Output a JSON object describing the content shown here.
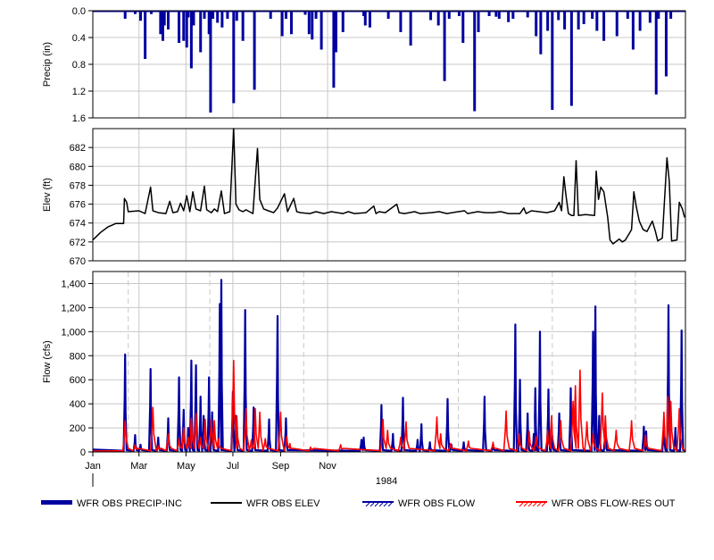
{
  "chart_data": [
    {
      "type": "bar",
      "ylabel": "Precip (in)",
      "yticks": [
        "0.0",
        "0.4",
        "0.8",
        "1.2",
        "1.6"
      ],
      "ylim": [
        0,
        1.6
      ],
      "y_inverted": true,
      "color": "#0000a0",
      "series_name": "WFR OBS PRECIP-INC",
      "values_by_day": [
        [
          42,
          0.12
        ],
        [
          55,
          0.05
        ],
        [
          62,
          0.15
        ],
        [
          68,
          0.72
        ],
        [
          76,
          0.05
        ],
        [
          88,
          0.35
        ],
        [
          91,
          0.45
        ],
        [
          93,
          0.22
        ],
        [
          98,
          0.28
        ],
        [
          112,
          0.48
        ],
        [
          118,
          0.45
        ],
        [
          122,
          0.55
        ],
        [
          124,
          0.1
        ],
        [
          128,
          0.86
        ],
        [
          131,
          0.22
        ],
        [
          140,
          0.62
        ],
        [
          145,
          0.12
        ],
        [
          151,
          0.35
        ],
        [
          153,
          1.52
        ],
        [
          156,
          0.12
        ],
        [
          162,
          0.18
        ],
        [
          168,
          0.25
        ],
        [
          175,
          0.12
        ],
        [
          183,
          1.38
        ],
        [
          187,
          0.15
        ],
        [
          195,
          0.45
        ],
        [
          210,
          1.18
        ],
        [
          231,
          0.12
        ],
        [
          246,
          0.38
        ],
        [
          251,
          0.12
        ],
        [
          258,
          0.35
        ],
        [
          276,
          0.06
        ],
        [
          281,
          0.35
        ],
        [
          285,
          0.43
        ],
        [
          290,
          0.12
        ],
        [
          297,
          0.58
        ],
        [
          313,
          1.15
        ],
        [
          316,
          0.62
        ],
        [
          325,
          0.32
        ],
        [
          352,
          0.08
        ],
        [
          354,
          0.22
        ],
        [
          360,
          0.25
        ],
        [
          384,
          0.12
        ],
        [
          400,
          0.32
        ],
        [
          413,
          0.52
        ],
        [
          439,
          0.14
        ],
        [
          449,
          0.22
        ],
        [
          457,
          1.05
        ],
        [
          463,
          0.12
        ],
        [
          476,
          0.08
        ],
        [
          481,
          0.48
        ],
        [
          496,
          1.5
        ],
        [
          501,
          0.32
        ],
        [
          515,
          0.08
        ],
        [
          524,
          0.09
        ],
        [
          528,
          0.12
        ],
        [
          540,
          0.17
        ],
        [
          546,
          0.12
        ],
        [
          565,
          0.1
        ],
        [
          576,
          0.38
        ],
        [
          582,
          0.65
        ],
        [
          591,
          0.3
        ],
        [
          597,
          1.48
        ],
        [
          605,
          0.14
        ],
        [
          613,
          0.28
        ],
        [
          622,
          1.42
        ],
        [
          631,
          0.28
        ],
        [
          638,
          0.2
        ],
        [
          649,
          0.12
        ],
        [
          655,
          0.3
        ],
        [
          664,
          0.45
        ],
        [
          681,
          0.38
        ],
        [
          695,
          0.12
        ],
        [
          702,
          0.58
        ],
        [
          711,
          0.3
        ],
        [
          724,
          0.18
        ],
        [
          732,
          1.25
        ],
        [
          735,
          0.12
        ],
        [
          745,
          0.98
        ],
        [
          751,
          0.12
        ]
      ]
    },
    {
      "type": "line",
      "ylabel": "Elev (ft)",
      "yticks": [
        "670",
        "672",
        "674",
        "676",
        "678",
        "680",
        "682"
      ],
      "ylim": [
        670,
        684
      ],
      "color": "#000000",
      "series_name": "WFR OBS ELEV",
      "points_by_day": [
        [
          0,
          672.2
        ],
        [
          10,
          673.0
        ],
        [
          20,
          673.6
        ],
        [
          30,
          673.95
        ],
        [
          40,
          673.95
        ],
        [
          41,
          676.6
        ],
        [
          44,
          676.2
        ],
        [
          46,
          675.2
        ],
        [
          60,
          675.3
        ],
        [
          68,
          675.0
        ],
        [
          75,
          677.8
        ],
        [
          78,
          675.3
        ],
        [
          85,
          675.1
        ],
        [
          95,
          675.0
        ],
        [
          100,
          676.3
        ],
        [
          104,
          675.1
        ],
        [
          110,
          675.2
        ],
        [
          114,
          676.1
        ],
        [
          118,
          675.3
        ],
        [
          122,
          676.9
        ],
        [
          126,
          675.2
        ],
        [
          130,
          677.3
        ],
        [
          134,
          675.5
        ],
        [
          140,
          675.3
        ],
        [
          145,
          677.9
        ],
        [
          148,
          675.4
        ],
        [
          154,
          675.1
        ],
        [
          158,
          675.5
        ],
        [
          162,
          675.2
        ],
        [
          167,
          677.4
        ],
        [
          171,
          675.0
        ],
        [
          178,
          675.2
        ],
        [
          183,
          684.0
        ],
        [
          186,
          676.0
        ],
        [
          190,
          675.4
        ],
        [
          195,
          675.2
        ],
        [
          199,
          675.4
        ],
        [
          208,
          675.0
        ],
        [
          214,
          681.9
        ],
        [
          217,
          676.5
        ],
        [
          222,
          675.5
        ],
        [
          228,
          675.3
        ],
        [
          235,
          675.1
        ],
        [
          240,
          675.6
        ],
        [
          249,
          677.1
        ],
        [
          253,
          675.2
        ],
        [
          261,
          676.6
        ],
        [
          265,
          675.2
        ],
        [
          270,
          675.1
        ],
        [
          282,
          675.0
        ],
        [
          290,
          675.2
        ],
        [
          300,
          675.0
        ],
        [
          310,
          675.2
        ],
        [
          318,
          675.1
        ],
        [
          325,
          675.0
        ],
        [
          332,
          675.2
        ],
        [
          340,
          675.0
        ],
        [
          355,
          675.1
        ],
        [
          365,
          675.8
        ],
        [
          368,
          675.0
        ],
        [
          372,
          675.2
        ],
        [
          380,
          675.1
        ],
        [
          395,
          676.0
        ],
        [
          398,
          675.1
        ],
        [
          405,
          675.0
        ],
        [
          418,
          675.2
        ],
        [
          425,
          675.0
        ],
        [
          440,
          675.1
        ],
        [
          450,
          675.2
        ],
        [
          460,
          675.0
        ],
        [
          475,
          675.2
        ],
        [
          483,
          675.3
        ],
        [
          487,
          675.0
        ],
        [
          500,
          675.2
        ],
        [
          510,
          675.1
        ],
        [
          520,
          675.1
        ],
        [
          530,
          675.2
        ],
        [
          540,
          675.0
        ],
        [
          555,
          675.0
        ],
        [
          560,
          675.6
        ],
        [
          563,
          675.0
        ],
        [
          570,
          675.3
        ],
        [
          590,
          675.1
        ],
        [
          600,
          675.3
        ],
        [
          606,
          676.2
        ],
        [
          609,
          675.3
        ],
        [
          612,
          678.9
        ],
        [
          615,
          676.8
        ],
        [
          618,
          675.0
        ],
        [
          622,
          674.8
        ],
        [
          625,
          674.8
        ],
        [
          628,
          680.6
        ],
        [
          631,
          674.8
        ],
        [
          640,
          674.9
        ],
        [
          652,
          674.8
        ],
        [
          654,
          679.5
        ],
        [
          657,
          676.5
        ],
        [
          660,
          677.8
        ],
        [
          664,
          677.3
        ],
        [
          669,
          674.6
        ],
        [
          672,
          672.2
        ],
        [
          676,
          671.8
        ],
        [
          684,
          672.3
        ],
        [
          688,
          672.0
        ],
        [
          692,
          672.2
        ],
        [
          700,
          673.3
        ],
        [
          703,
          677.3
        ],
        [
          706,
          675.8
        ],
        [
          710,
          674.2
        ],
        [
          715,
          673.3
        ],
        [
          720,
          673.1
        ],
        [
          727,
          674.2
        ],
        [
          731,
          673.1
        ],
        [
          734,
          672.1
        ],
        [
          740,
          672.4
        ],
        [
          746,
          680.9
        ],
        [
          749,
          678.4
        ],
        [
          752,
          672.1
        ],
        [
          759,
          672.2
        ],
        [
          762,
          676.2
        ],
        [
          766,
          675.5
        ],
        [
          769,
          674.6
        ]
      ]
    },
    {
      "type": "line",
      "ylabel": "Flow (cfs)",
      "yticks": [
        "0",
        "200",
        "400",
        "600",
        "800",
        "1,000",
        "1,200",
        "1,400"
      ],
      "ylim": [
        0,
        1500
      ],
      "xlabel": "1984",
      "xticks": [
        "Jan",
        "Mar",
        "May",
        "Jul",
        "Sep",
        "Nov"
      ],
      "series": [
        {
          "name": "WFR OBS FLOW",
          "color": "#0000a0",
          "peaks_by_day": [
            [
              42,
              810
            ],
            [
              55,
              140
            ],
            [
              62,
              60
            ],
            [
              75,
              690
            ],
            [
              85,
              120
            ],
            [
              98,
              280
            ],
            [
              112,
              620
            ],
            [
              118,
              350
            ],
            [
              124,
              200
            ],
            [
              128,
              760
            ],
            [
              134,
              720
            ],
            [
              140,
              460
            ],
            [
              144,
              300
            ],
            [
              151,
              620
            ],
            [
              155,
              330
            ],
            [
              165,
              1230
            ],
            [
              167,
              1430
            ],
            [
              182,
              500
            ],
            [
              186,
              300
            ],
            [
              198,
              1180
            ],
            [
              209,
              370
            ],
            [
              229,
              270
            ],
            [
              240,
              1130
            ],
            [
              251,
              280
            ],
            [
              349,
              100
            ],
            [
              352,
              120
            ],
            [
              375,
              390
            ],
            [
              390,
              150
            ],
            [
              403,
              450
            ],
            [
              422,
              100
            ],
            [
              427,
              230
            ],
            [
              438,
              80
            ],
            [
              461,
              440
            ],
            [
              466,
              60
            ],
            [
              482,
              80
            ],
            [
              509,
              460
            ],
            [
              520,
              60
            ],
            [
              549,
              1060
            ],
            [
              555,
              600
            ],
            [
              565,
              320
            ],
            [
              573,
              150
            ],
            [
              575,
              530
            ],
            [
              581,
              1000
            ],
            [
              592,
              520
            ],
            [
              597,
              130
            ],
            [
              606,
              320
            ],
            [
              621,
              530
            ],
            [
              650,
              1000
            ],
            [
              653,
              1210
            ],
            [
              658,
              300
            ],
            [
              666,
              200
            ],
            [
              716,
              210
            ],
            [
              719,
              170
            ],
            [
              742,
              240
            ],
            [
              748,
              1220
            ],
            [
              757,
              200
            ],
            [
              765,
              1010
            ]
          ]
        },
        {
          "name": "WFR OBS FLOW-RES OUT",
          "color": "#ff0000",
          "peaks_by_day": [
            [
              42,
              260
            ],
            [
              55,
              60
            ],
            [
              78,
              370
            ],
            [
              85,
              50
            ],
            [
              98,
              150
            ],
            [
              112,
              110
            ],
            [
              118,
              200
            ],
            [
              124,
              120
            ],
            [
              128,
              280
            ],
            [
              134,
              320
            ],
            [
              140,
              120
            ],
            [
              146,
              270
            ],
            [
              154,
              270
            ],
            [
              158,
              260
            ],
            [
              163,
              110
            ],
            [
              183,
              760
            ],
            [
              187,
              300
            ],
            [
              199,
              360
            ],
            [
              206,
              100
            ],
            [
              211,
              360
            ],
            [
              217,
              330
            ],
            [
              224,
              110
            ],
            [
              244,
              330
            ],
            [
              252,
              130
            ],
            [
              256,
              70
            ],
            [
              283,
              40
            ],
            [
              322,
              60
            ],
            [
              377,
              270
            ],
            [
              383,
              180
            ],
            [
              400,
              120
            ],
            [
              407,
              250
            ],
            [
              447,
              290
            ],
            [
              452,
              150
            ],
            [
              465,
              70
            ],
            [
              488,
              90
            ],
            [
              520,
              80
            ],
            [
              537,
              340
            ],
            [
              554,
              150
            ],
            [
              567,
              170
            ],
            [
              576,
              130
            ],
            [
              591,
              180
            ],
            [
              596,
              300
            ],
            [
              608,
              260
            ],
            [
              624,
              420
            ],
            [
              627,
              550
            ],
            [
              633,
              680
            ],
            [
              642,
              250
            ],
            [
              650,
              150
            ],
            [
              662,
              490
            ],
            [
              666,
              300
            ],
            [
              680,
              180
            ],
            [
              700,
              260
            ],
            [
              718,
              140
            ],
            [
              742,
              330
            ],
            [
              747,
              460
            ],
            [
              751,
              420
            ],
            [
              762,
              360
            ]
          ]
        }
      ]
    }
  ],
  "legend": [
    {
      "label": "WFR OBS PRECIP-INC",
      "color": "#0000a0"
    },
    {
      "label": "WFR OBS ELEV",
      "color": "#000000"
    },
    {
      "label": "WFR OBS FLOW",
      "color": "#0000a0"
    },
    {
      "label": "WFR OBS FLOW-RES OUT",
      "color": "#ff0000"
    }
  ],
  "labels": {
    "precip_ylabel": "Precip (in)",
    "elev_ylabel": "Elev (ft)",
    "flow_ylabel": "Flow (cfs)",
    "year": "1984"
  }
}
